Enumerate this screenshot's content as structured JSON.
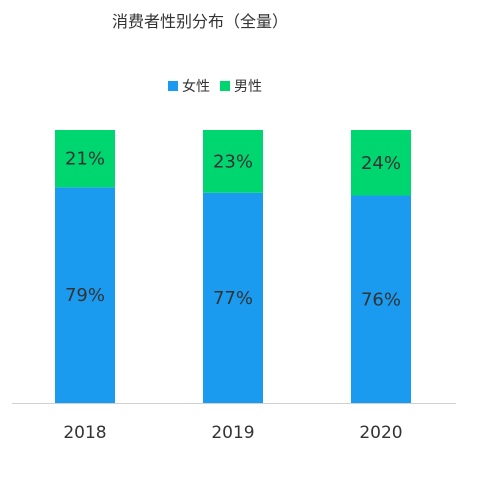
{
  "chart_data": {
    "type": "bar",
    "stacked": true,
    "title": "消费者性别分布（全量）",
    "categories": [
      "2018",
      "2019",
      "2020"
    ],
    "series": [
      {
        "name": "女性",
        "color": "#1a9bf0",
        "values": [
          79,
          77,
          76
        ],
        "labels": [
          "79%",
          "77%",
          "76%"
        ]
      },
      {
        "name": "男性",
        "color": "#00d66f",
        "values": [
          21,
          23,
          24
        ],
        "labels": [
          "21%",
          "23%",
          "24%"
        ]
      }
    ],
    "ylim": [
      0,
      100
    ],
    "legend_position": "top",
    "grid": false
  }
}
